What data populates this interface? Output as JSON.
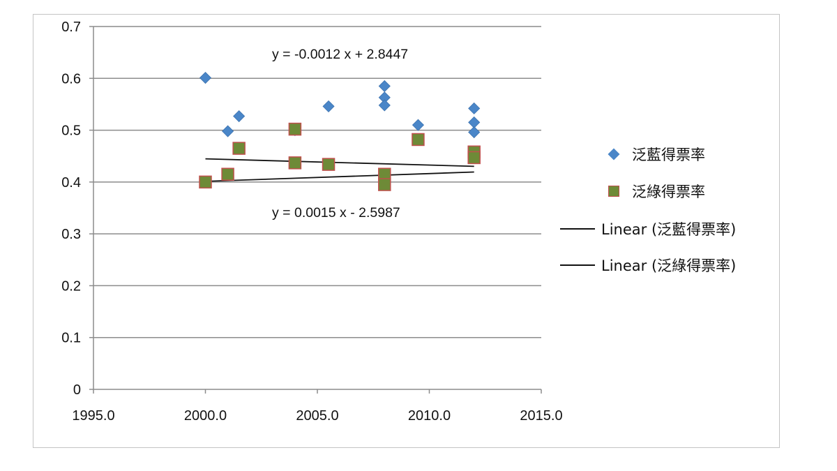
{
  "chart_data": {
    "type": "scatter",
    "x_ticks": [
      "1995.0",
      "2000.0",
      "2005.0",
      "2010.0",
      "2015.0"
    ],
    "y_ticks": [
      "0",
      "0.1",
      "0.2",
      "0.3",
      "0.4",
      "0.5",
      "0.6",
      "0.7"
    ],
    "xlim": [
      1995,
      2015
    ],
    "ylim": [
      0,
      0.7
    ],
    "grid": "horizontal",
    "legend_position": "right",
    "series": [
      {
        "name": "泛藍得票率",
        "marker": "diamond",
        "color": "#4a86c8",
        "points": [
          {
            "x": 2000,
            "y": 0.601
          },
          {
            "x": 2001,
            "y": 0.498
          },
          {
            "x": 2001.5,
            "y": 0.527
          },
          {
            "x": 2004,
            "y": 0.5
          },
          {
            "x": 2005.5,
            "y": 0.546
          },
          {
            "x": 2008,
            "y": 0.585
          },
          {
            "x": 2008,
            "y": 0.563
          },
          {
            "x": 2008,
            "y": 0.548
          },
          {
            "x": 2009.5,
            "y": 0.51
          },
          {
            "x": 2012,
            "y": 0.542
          },
          {
            "x": 2012,
            "y": 0.515
          },
          {
            "x": 2012,
            "y": 0.496
          }
        ]
      },
      {
        "name": "泛綠得票率",
        "marker": "square",
        "color": "#6e8a37",
        "edge_color": "#c0504d",
        "points": [
          {
            "x": 2000,
            "y": 0.4
          },
          {
            "x": 2001,
            "y": 0.415
          },
          {
            "x": 2001.5,
            "y": 0.465
          },
          {
            "x": 2004,
            "y": 0.502
          },
          {
            "x": 2004,
            "y": 0.437
          },
          {
            "x": 2005.5,
            "y": 0.434
          },
          {
            "x": 2008,
            "y": 0.415
          },
          {
            "x": 2008,
            "y": 0.395
          },
          {
            "x": 2009.5,
            "y": 0.482
          },
          {
            "x": 2012,
            "y": 0.458
          },
          {
            "x": 2012,
            "y": 0.447
          }
        ]
      }
    ],
    "trendlines": [
      {
        "name": "Linear (泛藍得票率)",
        "color": "#111111",
        "slope": -0.0012,
        "intercept": 2.8447,
        "x_range": [
          2000,
          2012
        ],
        "equation_label": "y = -0.0012 x + 2.8447"
      },
      {
        "name": "Linear (泛綠得票率)",
        "color": "#111111",
        "slope": 0.0015,
        "intercept": -2.5987,
        "x_range": [
          2000,
          2012
        ],
        "equation_label": "y = 0.0015 x - 2.5987"
      }
    ]
  }
}
